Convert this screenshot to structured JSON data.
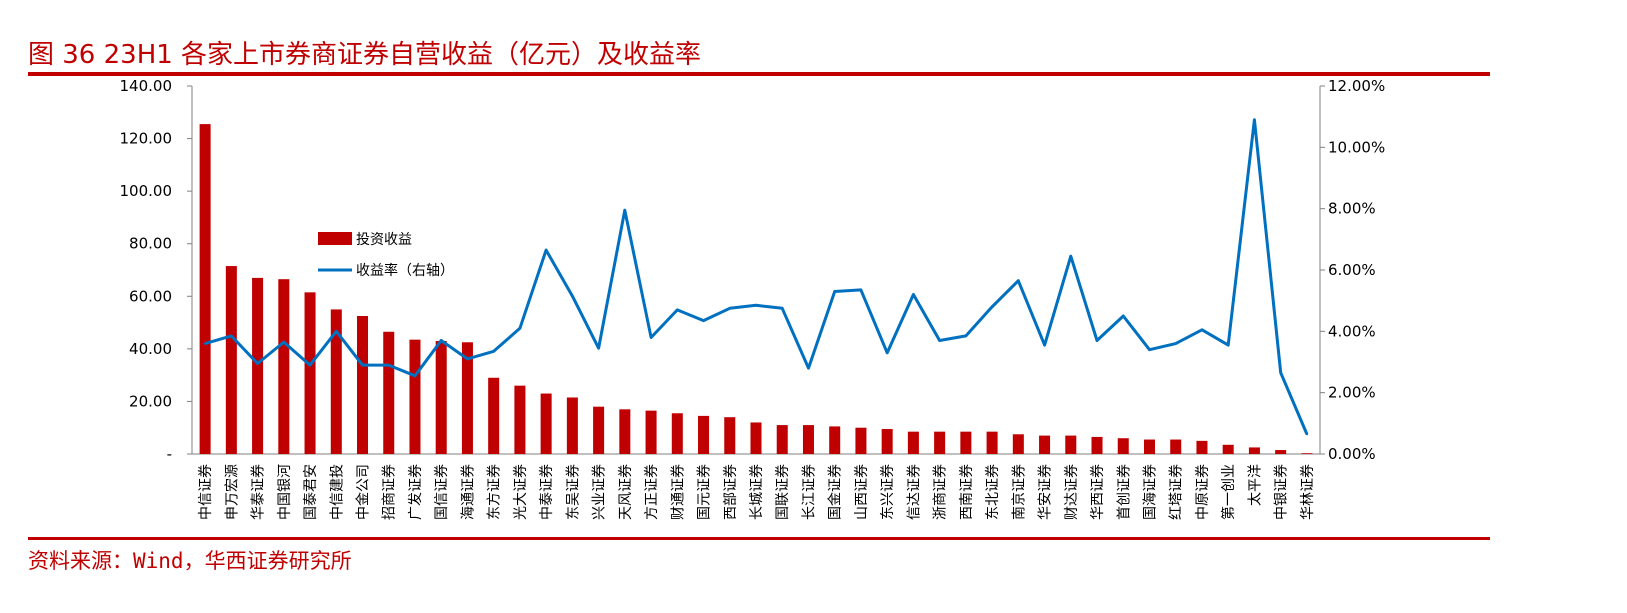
{
  "title": "图 36 23H1 各家上市券商证券自营收益（亿元）及收益率",
  "source": "资料来源：Wind，华西证券研究所",
  "colors": {
    "bar": "#c00000",
    "line": "#0070c0",
    "accent": "#c00000"
  },
  "chart_data": {
    "type": "bar",
    "categories": [
      "中信证券",
      "申万宏源",
      "华泰证券",
      "中国银河",
      "国泰君安",
      "中信建投",
      "中金公司",
      "招商证券",
      "广发证券",
      "国信证券",
      "海通证券",
      "东方证券",
      "光大证券",
      "中泰证券",
      "东吴证券",
      "兴业证券",
      "天风证券",
      "方正证券",
      "财通证券",
      "国元证券",
      "西部证券",
      "长城证券",
      "国联证券",
      "长江证券",
      "国金证券",
      "山西证券",
      "东兴证券",
      "信达证券",
      "浙商证券",
      "西南证券",
      "东北证券",
      "南京证券",
      "华安证券",
      "财达证券",
      "华西证券",
      "首创证券",
      "国海证券",
      "红塔证券",
      "中原证券",
      "第一创业",
      "太平洋",
      "中银证券",
      "华林证券"
    ],
    "series": [
      {
        "name": "投资收益",
        "type": "bar",
        "axis": "left",
        "values": [
          125.5,
          71.5,
          67,
          66.5,
          61.5,
          55,
          52.5,
          46.5,
          43.5,
          43,
          42.5,
          29,
          26,
          23,
          21.5,
          18,
          17,
          16.5,
          15.5,
          14.5,
          14,
          12,
          11,
          11,
          10.5,
          10,
          9.5,
          8.5,
          8.5,
          8.5,
          8.5,
          7.5,
          7,
          7,
          6.5,
          6,
          5.5,
          5.5,
          5,
          3.5,
          2.5,
          1.5,
          0.3
        ]
      },
      {
        "name": "收益率（右轴）",
        "type": "line",
        "axis": "right",
        "values": [
          3.6,
          3.85,
          2.95,
          3.65,
          2.9,
          4.0,
          2.9,
          2.9,
          2.55,
          3.7,
          3.1,
          3.35,
          4.1,
          6.65,
          5.15,
          3.45,
          7.95,
          3.8,
          4.7,
          4.35,
          4.75,
          4.85,
          4.75,
          2.8,
          5.3,
          5.35,
          3.3,
          5.2,
          3.7,
          3.85,
          4.8,
          5.65,
          3.55,
          6.45,
          3.7,
          4.5,
          3.4,
          3.6,
          4.05,
          3.55,
          10.9,
          2.65,
          0.65
        ]
      }
    ],
    "y_left": {
      "min": 0,
      "max": 140,
      "ticks": [
        "-",
        "20.00",
        "40.00",
        "60.00",
        "80.00",
        "100.00",
        "120.00",
        "140.00"
      ]
    },
    "y_right": {
      "min": 0,
      "max": 12,
      "ticks": [
        "0.00%",
        "2.00%",
        "4.00%",
        "6.00%",
        "8.00%",
        "10.00%",
        "12.00%"
      ]
    },
    "grid": false,
    "legend_position": "upper-left-inside"
  }
}
